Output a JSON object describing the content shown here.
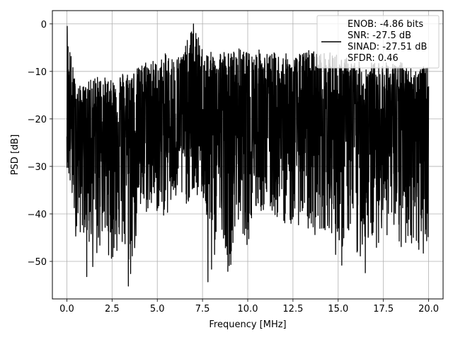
{
  "chart_data": {
    "type": "line",
    "title": "",
    "xlabel": "Frequency [MHz]",
    "ylabel": "PSD [dB]",
    "xlim": [
      -0.8,
      20.8
    ],
    "ylim": [
      -57.9,
      2.8
    ],
    "xticks": [
      0.0,
      2.5,
      5.0,
      7.5,
      10.0,
      12.5,
      15.0,
      17.5,
      20.0
    ],
    "xtick_labels": [
      "0.0",
      "2.5",
      "5.0",
      "7.5",
      "10.0",
      "12.5",
      "15.0",
      "17.5",
      "20.0"
    ],
    "yticks": [
      0,
      -10,
      -20,
      -30,
      -40,
      -50
    ],
    "ytick_labels": [
      "0",
      "−10",
      "−20",
      "−30",
      "−40",
      "−50"
    ],
    "grid": true,
    "legend_position": "top-right",
    "legend_lines": [
      "ENOB: -4.86 bits",
      "SNR: -27.5 dB",
      "SINAD: -27.51 dB",
      "SFDR: 0.46"
    ],
    "series": [
      {
        "color": "#000000",
        "x_range": [
          0.0,
          20.0
        ],
        "noise_floor_db": -22,
        "envelope_x": [
          0.0,
          0.5,
          1.0,
          1.5,
          2.0,
          2.5,
          3.0,
          3.5,
          4.0,
          4.5,
          5.0,
          5.5,
          6.0,
          6.5,
          7.0,
          7.5,
          8.0,
          8.5,
          9.0,
          9.5,
          10.0,
          10.5,
          11.0,
          11.5,
          12.0,
          12.5,
          13.0,
          13.5,
          14.0,
          14.5,
          15.0,
          15.5,
          16.0,
          16.5,
          17.0,
          17.5,
          18.0,
          18.5,
          19.0,
          19.5,
          20.0
        ],
        "envelope_max_db": [
          -0.5,
          -13,
          -13,
          -11,
          -11,
          -12,
          -10,
          -10,
          -9,
          -7,
          -8,
          -6,
          -7,
          -5,
          0,
          -5,
          -6,
          -5,
          -6,
          -5,
          -6,
          -5,
          -6,
          -6,
          -6,
          -7,
          -6,
          -5,
          -6,
          -6,
          -6,
          -7,
          -8,
          -8,
          -8,
          -8,
          -8,
          -8,
          -9,
          -9,
          -9
        ],
        "envelope_min_db": [
          -30,
          -45,
          -44,
          -53,
          -45,
          -51,
          -47,
          -55,
          -42,
          -40,
          -40,
          -41,
          -38,
          -38,
          -38,
          -36,
          -54,
          -42,
          -52,
          -42,
          -47,
          -40,
          -40,
          -41,
          -42,
          -43,
          -42,
          -45,
          -44,
          -43,
          -51,
          -44,
          -52,
          -46,
          -48,
          -44,
          -46,
          -49,
          -46,
          -50,
          -46
        ],
        "peak_points": [
          {
            "x": 0.02,
            "y": -0.5
          },
          {
            "x": 7.0,
            "y": 0.0
          },
          {
            "x": 1.1,
            "y": -53.2
          },
          {
            "x": 3.4,
            "y": -55.2
          },
          {
            "x": 7.8,
            "y": -54.3
          },
          {
            "x": 8.9,
            "y": -52.1
          },
          {
            "x": 15.2,
            "y": -50.8
          },
          {
            "x": 16.5,
            "y": -52.4
          }
        ]
      }
    ]
  }
}
